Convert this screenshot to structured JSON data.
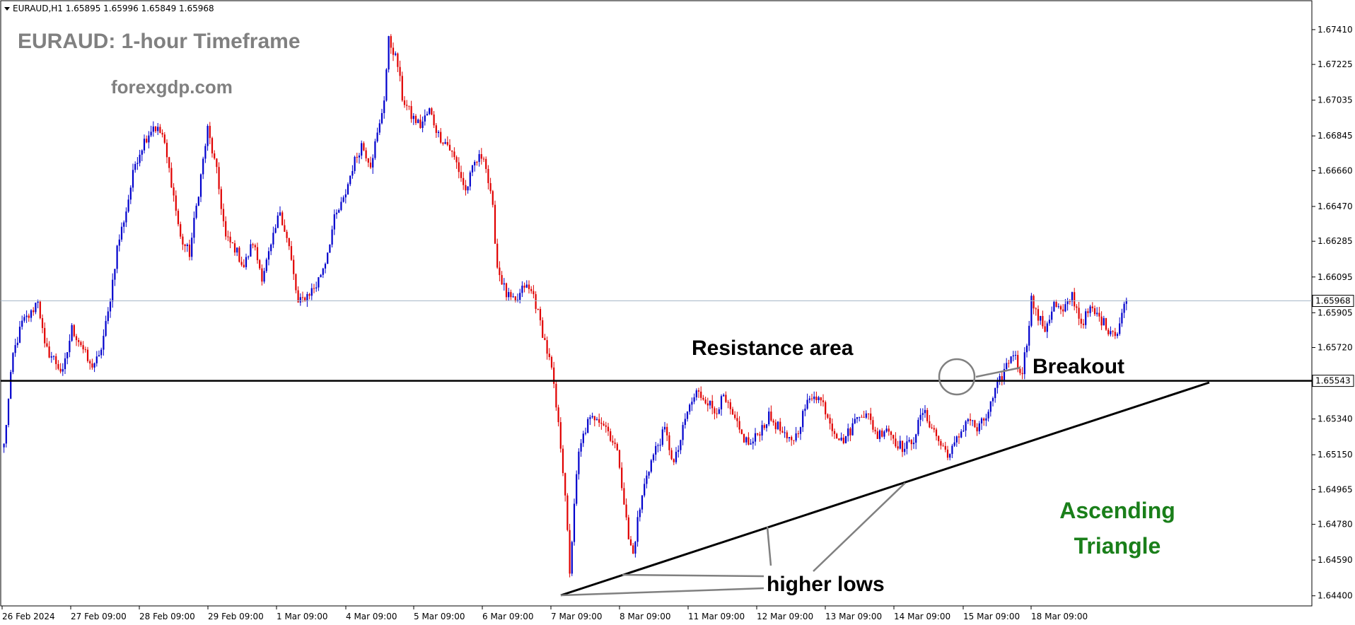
{
  "header": {
    "text": "EURAUD,H1  1.65895 1.65996 1.65849 1.65968"
  },
  "chart_data": {
    "type": "candlestick",
    "title": "EURAUD: 1-hour Timeframe",
    "watermark": "forexgdp.com",
    "ylim": [
      1.6435,
      1.6756
    ],
    "y_ticks": [
      "1.67410",
      "1.67225",
      "1.67035",
      "1.66845",
      "1.66660",
      "1.66470",
      "1.66285",
      "1.66095",
      "1.65905",
      "1.65720",
      "1.65340",
      "1.65150",
      "1.64965",
      "1.64780",
      "1.64590",
      "1.64400"
    ],
    "x_ticks": [
      "26 Feb 2024",
      "27 Feb 09:00",
      "28 Feb 09:00",
      "29 Feb 09:00",
      "1 Mar 09:00",
      "4 Mar 09:00",
      "5 Mar 09:00",
      "6 Mar 09:00",
      "7 Mar 09:00",
      "8 Mar 09:00",
      "11 Mar 09:00",
      "12 Mar 09:00",
      "13 Mar 09:00",
      "14 Mar 09:00",
      "15 Mar 09:00",
      "18 Mar 09:00"
    ],
    "current_price": "1.65968",
    "resistance_level": "1.65543",
    "colors": {
      "bull": "#0000cc",
      "bear": "#e00000",
      "wick": "#000000",
      "resistance": "#000000",
      "current_line": "#a0b0c0"
    },
    "close_path_anchors": [
      [
        0,
        1.652
      ],
      [
        4,
        1.6568
      ],
      [
        8,
        1.6585
      ],
      [
        12,
        1.659
      ],
      [
        15,
        1.6598
      ],
      [
        18,
        1.6572
      ],
      [
        22,
        1.6566
      ],
      [
        26,
        1.6558
      ],
      [
        30,
        1.6582
      ],
      [
        34,
        1.6574
      ],
      [
        38,
        1.6562
      ],
      [
        42,
        1.6566
      ],
      [
        46,
        1.659
      ],
      [
        50,
        1.6625
      ],
      [
        54,
        1.6645
      ],
      [
        58,
        1.667
      ],
      [
        62,
        1.6682
      ],
      [
        66,
        1.669
      ],
      [
        70,
        1.6685
      ],
      [
        74,
        1.666
      ],
      [
        78,
        1.663
      ],
      [
        82,
        1.6622
      ],
      [
        86,
        1.6655
      ],
      [
        90,
        1.6688
      ],
      [
        94,
        1.6665
      ],
      [
        98,
        1.663
      ],
      [
        102,
        1.6625
      ],
      [
        106,
        1.6615
      ],
      [
        110,
        1.6628
      ],
      [
        114,
        1.661
      ],
      [
        118,
        1.6625
      ],
      [
        122,
        1.6645
      ],
      [
        126,
        1.6625
      ],
      [
        130,
        1.6595
      ],
      [
        134,
        1.66
      ],
      [
        138,
        1.6605
      ],
      [
        142,
        1.6618
      ],
      [
        146,
        1.664
      ],
      [
        150,
        1.665
      ],
      [
        154,
        1.6668
      ],
      [
        158,
        1.668
      ],
      [
        162,
        1.667
      ],
      [
        166,
        1.669
      ],
      [
        168,
        1.6705
      ],
      [
        170,
        1.6735
      ],
      [
        172,
        1.673
      ],
      [
        174,
        1.6722
      ],
      [
        176,
        1.6705
      ],
      [
        180,
        1.6695
      ],
      [
        184,
        1.669
      ],
      [
        188,
        1.6698
      ],
      [
        192,
        1.6685
      ],
      [
        196,
        1.668
      ],
      [
        200,
        1.667
      ],
      [
        204,
        1.6655
      ],
      [
        208,
        1.667
      ],
      [
        212,
        1.6675
      ],
      [
        216,
        1.6645
      ],
      [
        218,
        1.6615
      ],
      [
        222,
        1.66
      ],
      [
        226,
        1.6595
      ],
      [
        230,
        1.6605
      ],
      [
        234,
        1.66
      ],
      [
        238,
        1.658
      ],
      [
        242,
        1.656
      ],
      [
        244,
        1.654
      ],
      [
        246,
        1.652
      ],
      [
        248,
        1.6495
      ],
      [
        250,
        1.645
      ],
      [
        252,
        1.649
      ],
      [
        254,
        1.6515
      ],
      [
        256,
        1.6525
      ],
      [
        258,
        1.6532
      ],
      [
        262,
        1.6536
      ],
      [
        266,
        1.653
      ],
      [
        270,
        1.652
      ],
      [
        272,
        1.651
      ],
      [
        274,
        1.649
      ],
      [
        276,
        1.647
      ],
      [
        278,
        1.6462
      ],
      [
        280,
        1.648
      ],
      [
        284,
        1.6505
      ],
      [
        288,
        1.6518
      ],
      [
        292,
        1.6528
      ],
      [
        296,
        1.651
      ],
      [
        298,
        1.6518
      ],
      [
        302,
        1.6538
      ],
      [
        306,
        1.6548
      ],
      [
        310,
        1.6545
      ],
      [
        314,
        1.6538
      ],
      [
        318,
        1.6545
      ],
      [
        322,
        1.6535
      ],
      [
        326,
        1.6525
      ],
      [
        330,
        1.652
      ],
      [
        334,
        1.6528
      ],
      [
        338,
        1.6535
      ],
      [
        342,
        1.653
      ],
      [
        346,
        1.6522
      ],
      [
        350,
        1.6525
      ],
      [
        354,
        1.654
      ],
      [
        358,
        1.6548
      ],
      [
        362,
        1.6542
      ],
      [
        366,
        1.653
      ],
      [
        370,
        1.6522
      ],
      [
        374,
        1.6528
      ],
      [
        378,
        1.6538
      ],
      [
        382,
        1.6535
      ],
      [
        386,
        1.6525
      ],
      [
        390,
        1.653
      ],
      [
        394,
        1.6522
      ],
      [
        398,
        1.6518
      ],
      [
        402,
        1.6524
      ],
      [
        406,
        1.6538
      ],
      [
        410,
        1.653
      ],
      [
        414,
        1.652
      ],
      [
        418,
        1.6515
      ],
      [
        422,
        1.6525
      ],
      [
        426,
        1.6535
      ],
      [
        430,
        1.6528
      ],
      [
        434,
        1.6535
      ],
      [
        438,
        1.6548
      ],
      [
        442,
        1.656
      ],
      [
        446,
        1.657
      ],
      [
        448,
        1.6562
      ],
      [
        450,
        1.656
      ],
      [
        452,
        1.6575
      ],
      [
        454,
        1.6598
      ],
      [
        456,
        1.659
      ],
      [
        460,
        1.6582
      ],
      [
        464,
        1.6595
      ],
      [
        468,
        1.659
      ],
      [
        472,
        1.66
      ],
      [
        476,
        1.6585
      ],
      [
        480,
        1.6592
      ],
      [
        484,
        1.6588
      ],
      [
        488,
        1.6582
      ],
      [
        492,
        1.658
      ],
      [
        494,
        1.659
      ],
      [
        496,
        1.6597
      ]
    ],
    "annotations": [
      "Resistance area",
      "Breakout",
      "higher lows",
      "Ascending",
      "Triangle"
    ]
  }
}
